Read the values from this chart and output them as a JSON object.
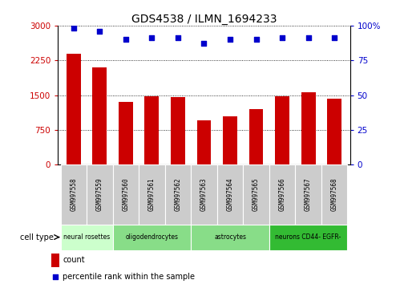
{
  "title": "GDS4538 / ILMN_1694233",
  "samples": [
    "GSM997558",
    "GSM997559",
    "GSM997560",
    "GSM997561",
    "GSM997562",
    "GSM997563",
    "GSM997564",
    "GSM997565",
    "GSM997566",
    "GSM997567",
    "GSM997568"
  ],
  "counts": [
    2400,
    2100,
    1350,
    1480,
    1460,
    950,
    1050,
    1200,
    1480,
    1560,
    1430
  ],
  "percentile": [
    98,
    96,
    90,
    91,
    91,
    87,
    90,
    90,
    91,
    91,
    91
  ],
  "bar_color": "#cc0000",
  "dot_color": "#0000cc",
  "ylim_left": [
    0,
    3000
  ],
  "ylim_right": [
    0,
    100
  ],
  "yticks_left": [
    0,
    750,
    1500,
    2250,
    3000
  ],
  "yticks_right": [
    0,
    25,
    50,
    75,
    100
  ],
  "cell_types": [
    {
      "label": "neural rosettes",
      "start": 0,
      "end": 2,
      "color": "#ccffcc"
    },
    {
      "label": "oligodendrocytes",
      "start": 2,
      "end": 5,
      "color": "#88dd88"
    },
    {
      "label": "astrocytes",
      "start": 5,
      "end": 8,
      "color": "#88dd88"
    },
    {
      "label": "neurons CD44- EGFR-",
      "start": 8,
      "end": 11,
      "color": "#33bb33"
    }
  ],
  "legend_count_label": "count",
  "legend_pct_label": "percentile rank within the sample",
  "cell_type_label": "cell type",
  "background_color": "#ffffff",
  "plot_bg_color": "#ffffff",
  "grid_color": "#000000",
  "tick_color_left": "#cc0000",
  "tick_color_right": "#0000cc",
  "sample_box_color": "#cccccc",
  "bar_width": 0.55
}
